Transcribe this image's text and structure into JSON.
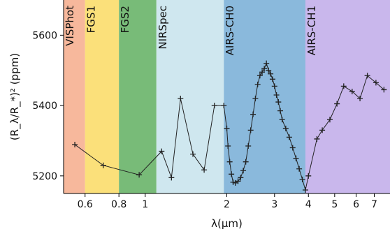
{
  "chart_data": {
    "type": "scatter",
    "xlabel": "λ(μm)",
    "ylabel": "(R_λ/R_*)² (ppm)",
    "xscale": "log",
    "xlim": [
      0.5,
      8.0
    ],
    "ylim": [
      5150,
      5700
    ],
    "grid": false,
    "x_ticks": [
      0.6,
      0.8,
      1,
      2,
      3,
      4,
      5,
      6,
      7
    ],
    "x_tick_labels": [
      "0.6",
      "0.8",
      "1",
      "2",
      "3",
      "4",
      "5",
      "6",
      "7"
    ],
    "y_ticks": [
      5200,
      5400,
      5600
    ],
    "y_tick_labels": [
      "5200",
      "5400",
      "5600"
    ],
    "bands": [
      {
        "name": "VISPhot",
        "x0": 0.5,
        "x1": 0.6,
        "color": "#f7b89c"
      },
      {
        "name": "FGS1",
        "x0": 0.6,
        "x1": 0.8,
        "color": "#fbe07a"
      },
      {
        "name": "FGS2",
        "x0": 0.8,
        "x1": 1.1,
        "color": "#78bb78"
      },
      {
        "name": "NIRSpec",
        "x0": 1.1,
        "x1": 1.95,
        "color": "#cfe7ef"
      },
      {
        "name": "AIRS-CH0",
        "x0": 1.95,
        "x1": 3.9,
        "color": "#8ab9dc"
      },
      {
        "name": "AIRS-CH1",
        "x0": 3.9,
        "x1": 8.0,
        "color": "#c9b7ec"
      }
    ],
    "series": [
      {
        "color": "#222222",
        "points": [
          [
            0.55,
            5289
          ],
          [
            0.7,
            5230
          ],
          [
            0.95,
            5203
          ],
          [
            1.15,
            5270
          ],
          [
            1.25,
            5195
          ],
          [
            1.35,
            5420
          ],
          [
            1.5,
            5262
          ],
          [
            1.65,
            5217
          ],
          [
            1.8,
            5400
          ],
          [
            1.95,
            5400
          ],
          [
            2.0,
            5335
          ],
          [
            2.02,
            5285
          ],
          [
            2.05,
            5240
          ],
          [
            2.08,
            5205
          ],
          [
            2.11,
            5182
          ],
          [
            2.15,
            5180
          ],
          [
            2.2,
            5185
          ],
          [
            2.25,
            5195
          ],
          [
            2.3,
            5215
          ],
          [
            2.35,
            5240
          ],
          [
            2.4,
            5285
          ],
          [
            2.45,
            5330
          ],
          [
            2.5,
            5375
          ],
          [
            2.55,
            5420
          ],
          [
            2.6,
            5460
          ],
          [
            2.65,
            5485
          ],
          [
            2.7,
            5495
          ],
          [
            2.75,
            5505
          ],
          [
            2.8,
            5520
          ],
          [
            2.85,
            5500
          ],
          [
            2.9,
            5490
          ],
          [
            2.95,
            5475
          ],
          [
            3.0,
            5455
          ],
          [
            3.05,
            5430
          ],
          [
            3.1,
            5410
          ],
          [
            3.15,
            5385
          ],
          [
            3.2,
            5360
          ],
          [
            3.3,
            5335
          ],
          [
            3.4,
            5310
          ],
          [
            3.5,
            5280
          ],
          [
            3.6,
            5250
          ],
          [
            3.7,
            5220
          ],
          [
            3.8,
            5190
          ],
          [
            3.9,
            5160
          ],
          [
            4.0,
            5200
          ],
          [
            4.3,
            5305
          ],
          [
            4.5,
            5330
          ],
          [
            4.8,
            5360
          ],
          [
            5.1,
            5405
          ],
          [
            5.4,
            5455
          ],
          [
            5.8,
            5440
          ],
          [
            6.2,
            5420
          ],
          [
            6.6,
            5485
          ],
          [
            7.1,
            5465
          ],
          [
            7.6,
            5445
          ]
        ]
      }
    ]
  }
}
